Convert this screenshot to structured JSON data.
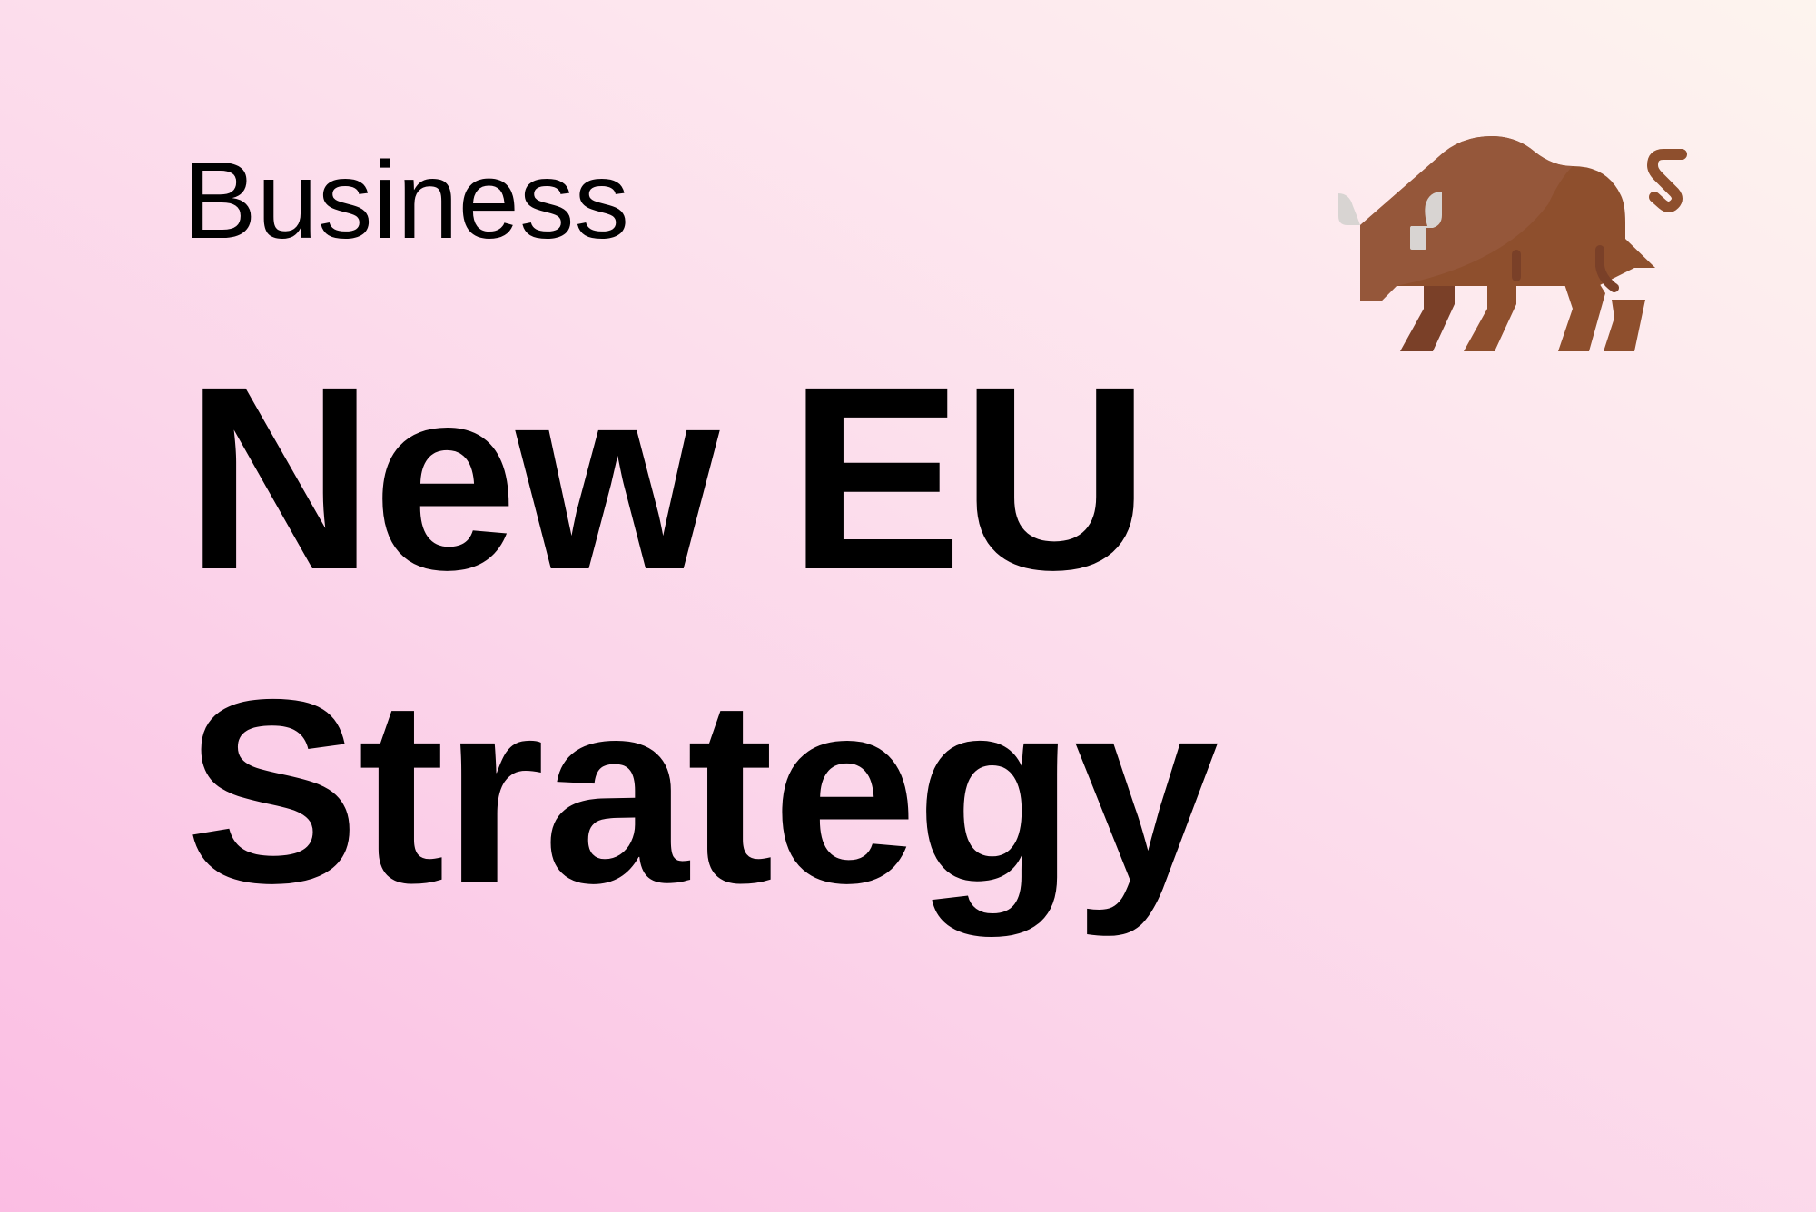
{
  "category": "Business",
  "headline": {
    "line1": "New EU",
    "line2": "Strategy"
  },
  "mascot": {
    "icon": "bison-icon",
    "colors": {
      "body": "#8e4f2d",
      "body_light": "#95573a",
      "legs_dark": "#7a4028",
      "horn": "#d8d4d2"
    }
  },
  "background": {
    "gradient_start": "#fbbde3",
    "gradient_end": "#fdf4ee"
  }
}
